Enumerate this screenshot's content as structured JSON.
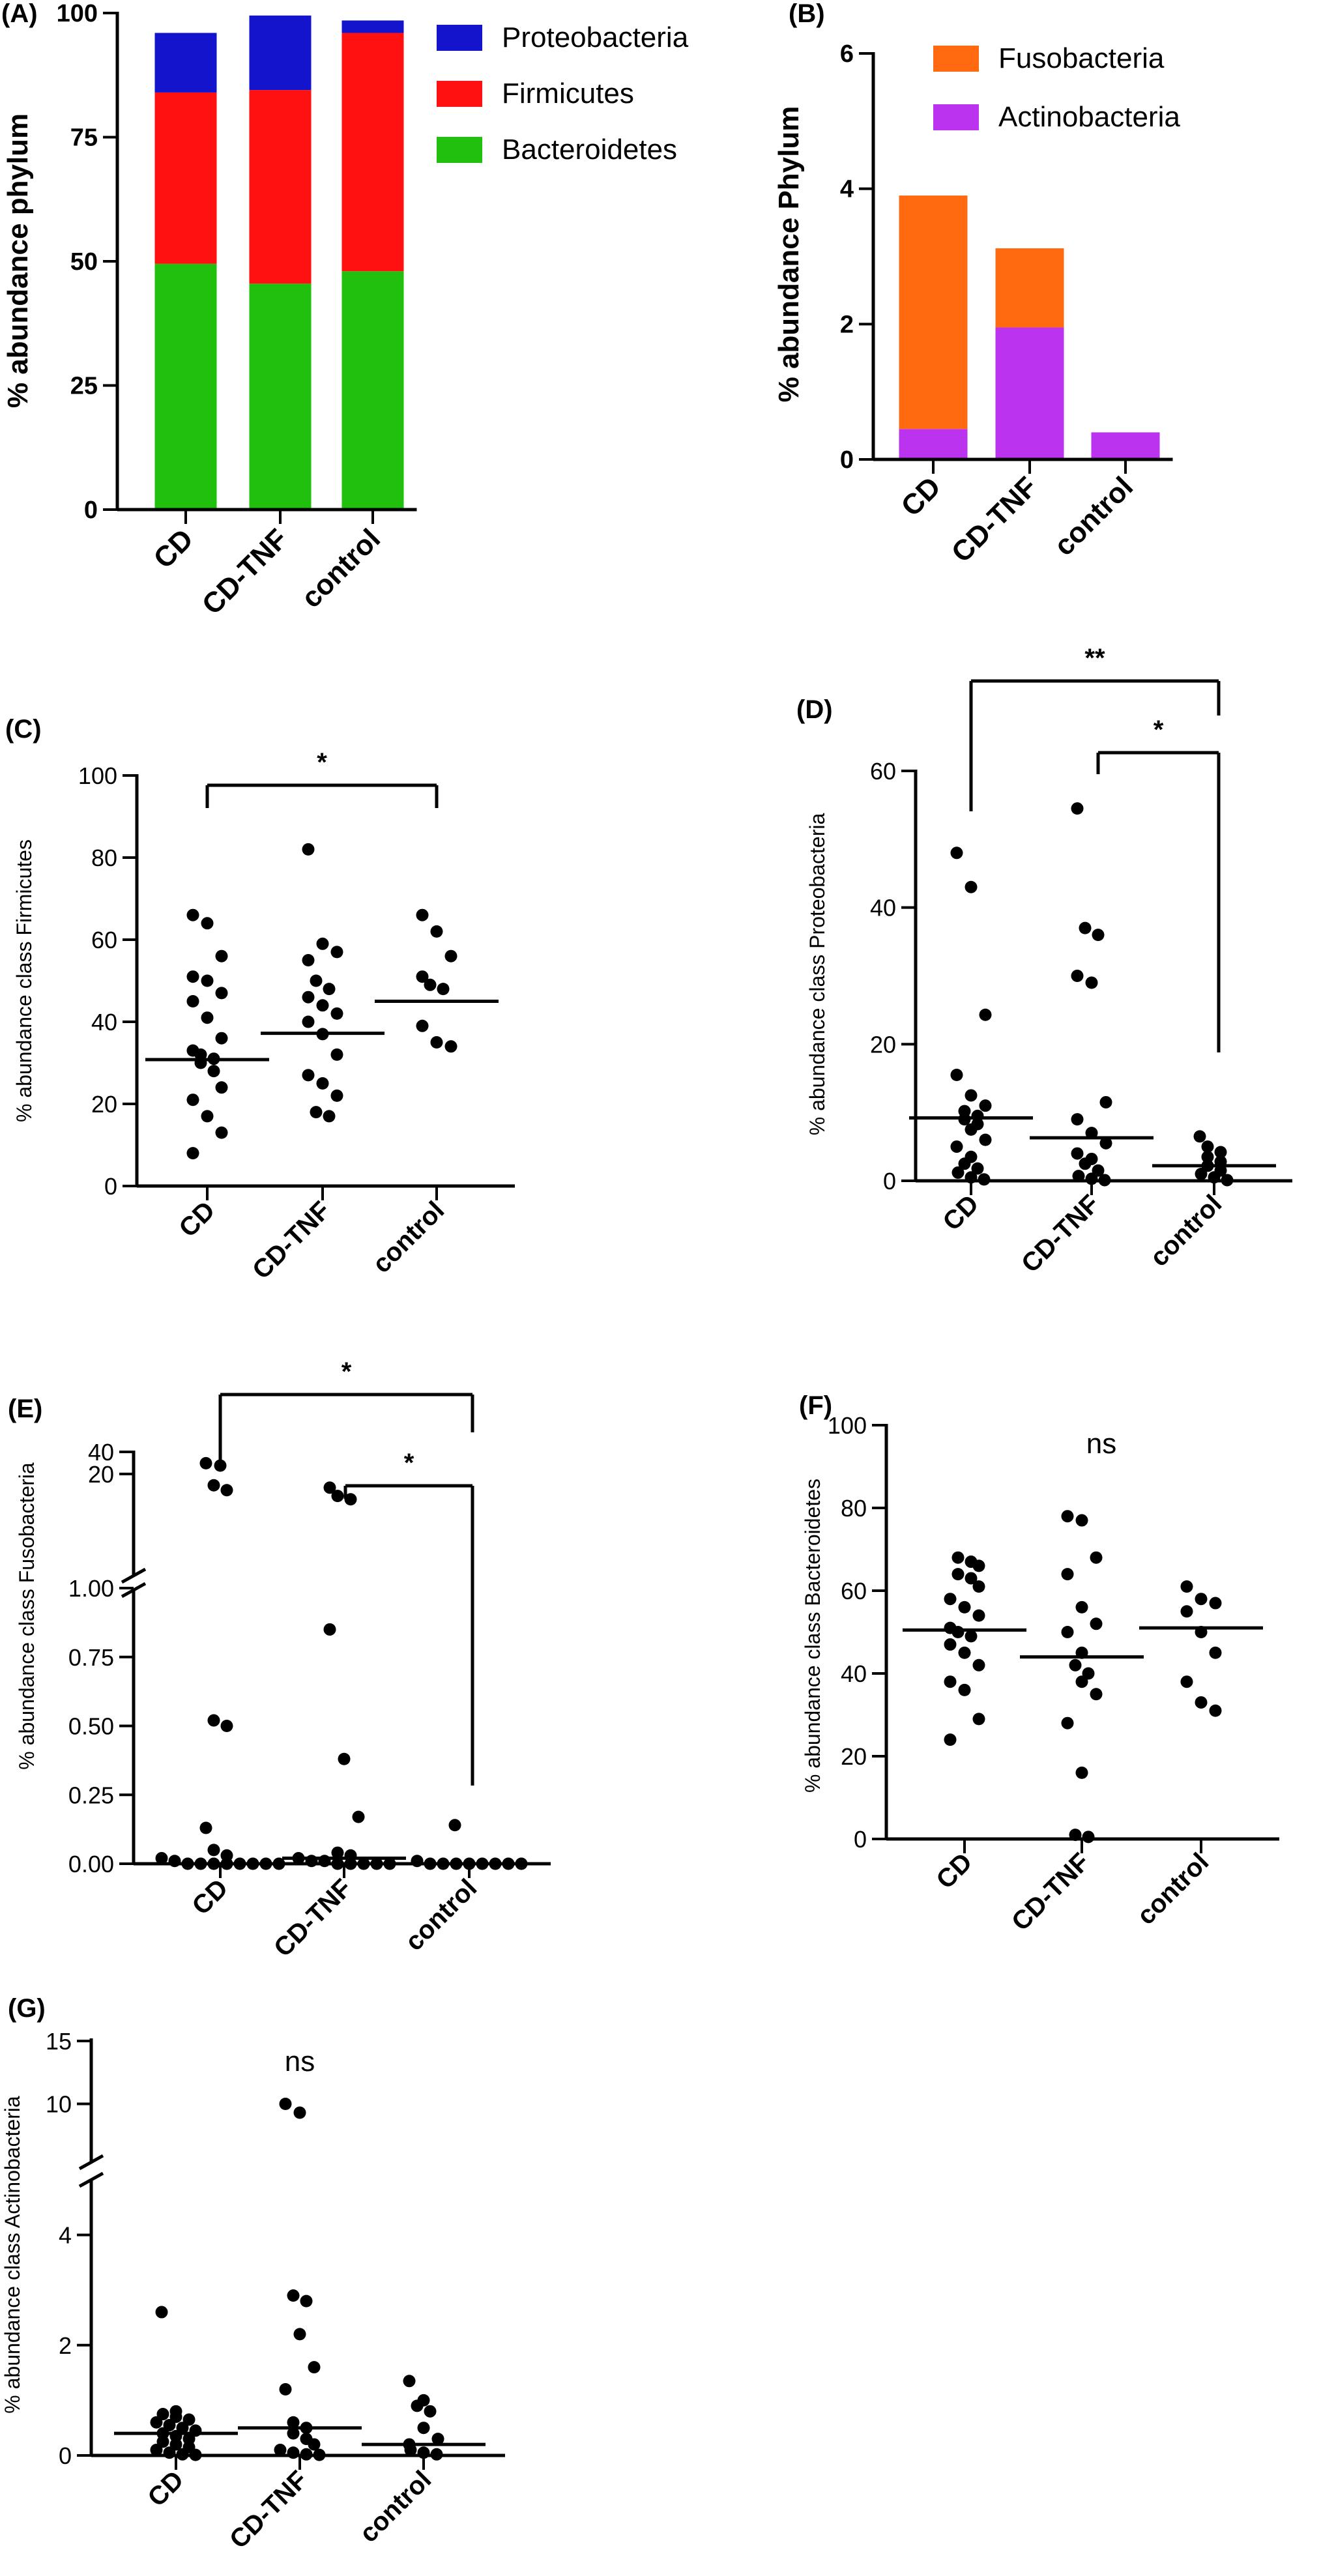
{
  "chart_data": [
    {
      "panel": "(A)",
      "type": "bar",
      "stacked": true,
      "ylabel": "% abundance phylum",
      "ylim": [
        0,
        100
      ],
      "yticks": [
        "0",
        "25",
        "50",
        "75",
        "100"
      ],
      "categories": [
        "CD",
        "CD-TNF",
        "control"
      ],
      "legend_position": "top-right",
      "series": [
        {
          "name": "Bacteroidetes",
          "color": "#22c00e",
          "values": [
            49.5,
            45.5,
            48.0
          ]
        },
        {
          "name": "Firmicutes",
          "color": "#ff1111",
          "values": [
            34.5,
            39.0,
            48.0
          ]
        },
        {
          "name": "Proteobacteria",
          "color": "#1414cc",
          "values": [
            12.0,
            15.0,
            2.5
          ]
        }
      ]
    },
    {
      "panel": "(B)",
      "type": "bar",
      "stacked": true,
      "ylabel": "% abundance Phylum",
      "ylim": [
        0,
        6
      ],
      "yticks": [
        "0",
        "2",
        "4",
        "6"
      ],
      "categories": [
        "CD",
        "CD-TNF",
        "control"
      ],
      "legend_position": "top-right",
      "series": [
        {
          "name": "Actinobacteria",
          "color": "#bb33ee",
          "values": [
            0.45,
            1.95,
            0.4
          ]
        },
        {
          "name": "Fusobacteria",
          "color": "#ff6a10",
          "values": [
            3.45,
            1.17,
            0.0
          ]
        }
      ]
    },
    {
      "panel": "(C)",
      "type": "scatter",
      "ylabel": "% abundance class Firmicutes",
      "ylim": [
        0,
        100
      ],
      "yticks": [
        "0",
        "20",
        "40",
        "60",
        "80",
        "100"
      ],
      "categories": [
        "CD",
        "CD-TNF",
        "control"
      ],
      "medians": [
        30.8,
        37.2,
        45.0
      ],
      "significance": [
        {
          "from": "CD",
          "to": "control",
          "label": "*"
        }
      ],
      "groups": [
        [
          66,
          64,
          56,
          51,
          50,
          47,
          45,
          41,
          36,
          33,
          32,
          31,
          30,
          28,
          24,
          21,
          17,
          13,
          8
        ],
        [
          82,
          59,
          57,
          55,
          50,
          48,
          46,
          44,
          42,
          40,
          37,
          32,
          27,
          25,
          22,
          18,
          17
        ],
        [
          66,
          62,
          56,
          51,
          49,
          48,
          39,
          35,
          34
        ]
      ]
    },
    {
      "panel": "(D)",
      "type": "scatter",
      "ylabel": "% abundance class Proteobacteria",
      "ylim": [
        0,
        60
      ],
      "yticks": [
        "0",
        "20",
        "40",
        "60"
      ],
      "categories": [
        "CD",
        "CD-TNF",
        "control"
      ],
      "medians": [
        9.2,
        6.3,
        2.2
      ],
      "significance": [
        {
          "from": "CD",
          "to": "control",
          "label": "**"
        },
        {
          "from": "CD-TNF",
          "to": "control",
          "label": "*"
        }
      ],
      "groups": [
        [
          48,
          43,
          24.3,
          15.5,
          12.5,
          11,
          10.2,
          9.5,
          9,
          8.3,
          7.5,
          6,
          5,
          3.5,
          2.5,
          1.8,
          1.2,
          0.5,
          0.2
        ],
        [
          54.5,
          37,
          36,
          30,
          29,
          11.5,
          9,
          7,
          5.5,
          4,
          3.2,
          2.5,
          1.5,
          0.7,
          0.3,
          0.1
        ],
        [
          6.5,
          5,
          4.2,
          3.5,
          2.8,
          2.2,
          1.5,
          1,
          0.5,
          0.1
        ]
      ]
    },
    {
      "panel": "(E)",
      "type": "scatter",
      "ylabel": "% abundance class Fusobacteria",
      "y_break": {
        "lower": [
          0,
          1.0
        ],
        "upper": [
          1.0,
          40
        ]
      },
      "yticks": [
        "0.00",
        "0.25",
        "0.50",
        "0.75",
        "1.00",
        "20",
        "40"
      ],
      "categories": [
        "CD",
        "CD-TNF",
        "control"
      ],
      "medians": [
        0.0,
        0.02,
        0.0
      ],
      "significance": [
        {
          "from": "CD",
          "to": "control",
          "label": "*"
        },
        {
          "from": "CD-TNF",
          "to": "control",
          "label": "*"
        }
      ],
      "groups": [
        [
          28,
          26,
          14,
          12,
          0.52,
          0.5,
          0.13,
          0.05,
          0.03,
          0.02,
          0.01,
          0,
          0,
          0,
          0,
          0,
          0,
          0,
          0
        ],
        [
          13,
          10,
          9,
          0.85,
          0.38,
          0.17,
          0.04,
          0.03,
          0.02,
          0.01,
          0.01,
          0,
          0,
          0,
          0,
          0
        ],
        [
          0.14,
          0.01,
          0,
          0,
          0,
          0,
          0,
          0,
          0,
          0
        ]
      ]
    },
    {
      "panel": "(F)",
      "type": "scatter",
      "ylabel": "% abundance class Bacteroidetes",
      "ylim": [
        0,
        100
      ],
      "yticks": [
        "0",
        "20",
        "40",
        "60",
        "80",
        "100"
      ],
      "categories": [
        "CD",
        "CD-TNF",
        "control"
      ],
      "medians": [
        50.5,
        44.0,
        51.0
      ],
      "significance_text": "ns",
      "groups": [
        [
          68,
          67,
          66,
          64,
          63,
          61,
          58,
          56,
          54,
          51,
          50,
          49,
          47,
          45,
          42,
          38,
          36,
          29,
          24
        ],
        [
          78,
          77,
          68,
          64,
          56,
          52,
          50,
          45,
          42,
          40,
          38,
          35,
          28,
          16,
          1,
          0.5
        ],
        [
          61,
          58,
          57,
          55,
          50,
          45,
          38,
          33,
          31
        ]
      ]
    },
    {
      "panel": "(G)",
      "type": "scatter",
      "ylabel": "% abundance class Actinobacteria",
      "y_break": {
        "lower": [
          0,
          5
        ],
        "upper": [
          5,
          15
        ]
      },
      "yticks": [
        "0",
        "2",
        "4",
        "10",
        "15"
      ],
      "categories": [
        "CD",
        "CD-TNF",
        "control"
      ],
      "medians": [
        0.4,
        0.5,
        0.2
      ],
      "significance_text": "ns",
      "groups": [
        [
          2.6,
          0.8,
          0.75,
          0.7,
          0.65,
          0.6,
          0.55,
          0.5,
          0.45,
          0.4,
          0.35,
          0.3,
          0.25,
          0.2,
          0.15,
          0.1,
          0.05,
          0.02,
          0.01
        ],
        [
          10,
          9.3,
          2.9,
          2.8,
          2.2,
          1.6,
          1.2,
          0.6,
          0.5,
          0.4,
          0.3,
          0.2,
          0.1,
          0.05,
          0.02,
          0.01
        ],
        [
          1.35,
          1.0,
          0.9,
          0.8,
          0.5,
          0.3,
          0.2,
          0.1,
          0.05,
          0.02
        ]
      ]
    }
  ]
}
